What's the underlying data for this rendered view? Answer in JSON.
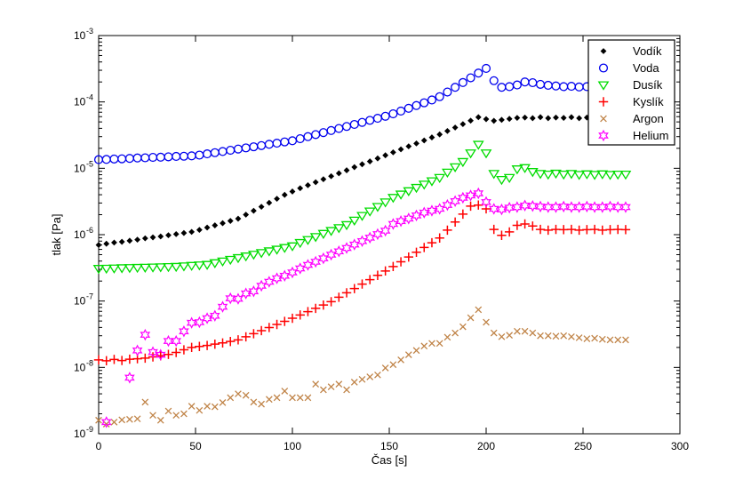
{
  "figure": {
    "background": "#ffffff",
    "axis_color": "#000000"
  },
  "chart_data": {
    "type": "scatter",
    "title": "",
    "xlabel": "Čas [s]",
    "ylabel": "tlak [Pa]",
    "xlim": [
      0,
      300
    ],
    "x_ticks": [
      0,
      50,
      100,
      150,
      200,
      250,
      300
    ],
    "y_scale": "log",
    "ylim_exp": [
      -9,
      -3
    ],
    "y_tick_exponents": [
      -9,
      -8,
      -7,
      -6,
      -5,
      -4,
      -3
    ],
    "grid": false,
    "legend": {
      "position": "northeast",
      "background": "#ffffff",
      "border_color": "#000000"
    },
    "x": [
      0,
      4,
      8,
      12,
      16,
      20,
      24,
      28,
      32,
      36,
      40,
      44,
      48,
      52,
      56,
      60,
      64,
      68,
      72,
      76,
      80,
      84,
      88,
      92,
      96,
      100,
      104,
      108,
      112,
      116,
      120,
      124,
      128,
      132,
      136,
      140,
      144,
      148,
      152,
      156,
      160,
      164,
      168,
      172,
      176,
      180,
      184,
      188,
      192,
      196,
      200,
      204,
      208,
      212,
      216,
      220,
      224,
      228,
      232,
      236,
      240,
      244,
      248,
      252,
      256,
      260,
      264,
      268,
      272
    ],
    "series": [
      {
        "id": "vodik",
        "name": "Vodík",
        "marker": "diamond",
        "filled": true,
        "color": "#000000",
        "values": [
          7e-07,
          7.3e-07,
          7.6e-07,
          7.8e-07,
          8.1e-07,
          8.4e-07,
          8.8e-07,
          9.1e-07,
          9.4e-07,
          9.8e-07,
          1.02e-06,
          1.06e-06,
          1.1e-06,
          1.18e-06,
          1.28e-06,
          1.38e-06,
          1.49e-06,
          1.61e-06,
          1.74e-06,
          2e-06,
          2.29e-06,
          2.63e-06,
          3.02e-06,
          3.47e-06,
          3.98e-06,
          4.47e-06,
          5.01e-06,
          5.56e-06,
          6.17e-06,
          6.84e-06,
          7.59e-06,
          8.41e-06,
          9.33e-06,
          1.04e-05,
          1.15e-05,
          1.27e-05,
          1.41e-05,
          1.57e-05,
          1.74e-05,
          1.93e-05,
          2.14e-05,
          2.37e-05,
          2.63e-05,
          2.92e-05,
          3.24e-05,
          3.65e-05,
          4.11e-05,
          4.63e-05,
          5.22e-05,
          5.89e-05,
          5.5e-05,
          5.19e-05,
          5.37e-05,
          5.56e-05,
          5.75e-05,
          5.82e-05,
          5.69e-05,
          5.89e-05,
          5.69e-05,
          5.82e-05,
          5.75e-05,
          5.89e-05,
          5.69e-05,
          5.82e-05,
          5.75e-05,
          5.89e-05,
          5.75e-05,
          5.82e-05,
          5.75e-05
        ]
      },
      {
        "id": "voda",
        "name": "Voda",
        "marker": "circle",
        "filled": false,
        "color": "#0000EE",
        "values": [
          1.35e-05,
          1.36e-05,
          1.38e-05,
          1.39e-05,
          1.41e-05,
          1.43e-05,
          1.44e-05,
          1.46e-05,
          1.47e-05,
          1.49e-05,
          1.51e-05,
          1.52e-05,
          1.54e-05,
          1.58e-05,
          1.65e-05,
          1.72e-05,
          1.79e-05,
          1.87e-05,
          1.95e-05,
          2.03e-05,
          2.11e-05,
          2.2e-05,
          2.3e-05,
          2.39e-05,
          2.5e-05,
          2.6e-05,
          2.79e-05,
          3e-05,
          3.22e-05,
          3.45e-05,
          3.71e-05,
          3.98e-05,
          4.27e-05,
          4.58e-05,
          4.92e-05,
          5.28e-05,
          5.67e-05,
          6.08e-05,
          6.62e-05,
          7.28e-05,
          8.02e-05,
          8.83e-05,
          9.71e-05,
          0.000107,
          0.00012,
          0.000141,
          0.000166,
          0.000196,
          0.000231,
          0.000272,
          0.00032,
          0.000209,
          0.000166,
          0.00017,
          0.00018,
          0.0002,
          0.000195,
          0.000184,
          0.000178,
          0.000174,
          0.00017,
          0.000172,
          0.000168,
          0.00017,
          0.000168,
          0.00017,
          0.000168,
          0.00017,
          0.000169
        ]
      },
      {
        "id": "dusik",
        "name": "Dusík",
        "marker": "triangle-down",
        "filled": false,
        "color": "#00DC00",
        "values": [
          3.09e-07,
          3.11e-07,
          3.13e-07,
          3.16e-07,
          3.18e-07,
          3.2e-07,
          3.22e-07,
          3.24e-07,
          3.27e-07,
          3.29e-07,
          3.31e-07,
          3.37e-07,
          3.43e-07,
          3.49e-07,
          3.55e-07,
          3.76e-07,
          3.99e-07,
          4.23e-07,
          4.49e-07,
          4.76e-07,
          5.05e-07,
          5.35e-07,
          5.68e-07,
          6.02e-07,
          6.38e-07,
          6.76e-07,
          7.59e-07,
          8.41e-07,
          9.33e-07,
          1.04e-06,
          1.15e-06,
          1.27e-06,
          1.41e-06,
          1.65e-06,
          1.94e-06,
          2.26e-06,
          2.65e-06,
          3.1e-06,
          3.63e-06,
          4.07e-06,
          4.57e-06,
          5.13e-06,
          5.75e-06,
          6.46e-06,
          7.24e-06,
          8.71e-06,
          1.05e-05,
          1.26e-05,
          1.7e-05,
          2.29e-05,
          1.7e-05,
          8.32e-06,
          6.76e-06,
          7.24e-06,
          9.77e-06,
          1.02e-05,
          8.91e-06,
          8.32e-06,
          8.13e-06,
          8.41e-06,
          8.13e-06,
          8.32e-06,
          8.04e-06,
          8.22e-06,
          8.04e-06,
          8.22e-06,
          8.04e-06,
          8.13e-06,
          8.13e-06
        ]
      },
      {
        "id": "kyslik",
        "name": "Kyslík",
        "marker": "plus",
        "filled": false,
        "color": "#FF0000",
        "values": [
          1.3e-08,
          1.26e-08,
          1.32e-08,
          1.27e-08,
          1.33e-08,
          1.35e-08,
          1.38e-08,
          1.44e-08,
          1.5e-08,
          1.57e-08,
          1.68e-08,
          1.84e-08,
          2e-08,
          2.07e-08,
          2.14e-08,
          2.24e-08,
          2.34e-08,
          2.46e-08,
          2.6e-08,
          2.89e-08,
          3.22e-08,
          3.58e-08,
          3.99e-08,
          4.44e-08,
          4.94e-08,
          5.5e-08,
          6.17e-08,
          6.92e-08,
          7.76e-08,
          8.71e-08,
          9.77e-08,
          1.14e-07,
          1.33e-07,
          1.54e-07,
          1.8e-07,
          2.1e-07,
          2.44e-07,
          2.84e-07,
          3.31e-07,
          3.9e-07,
          4.6e-07,
          5.43e-07,
          6.41e-07,
          7.56e-07,
          8.91e-07,
          1.17e-06,
          1.55e-06,
          2.04e-06,
          2.69e-06,
          2.79e-06,
          2.45e-06,
          1.2e-06,
          9.77e-07,
          1.1e-06,
          1.38e-06,
          1.45e-06,
          1.35e-06,
          1.2e-06,
          1.17e-06,
          1.2e-06,
          1.19e-06,
          1.2e-06,
          1.17e-06,
          1.19e-06,
          1.2e-06,
          1.17e-06,
          1.19e-06,
          1.2e-06,
          1.19e-06
        ]
      },
      {
        "id": "argon",
        "name": "Argon",
        "marker": "x",
        "filled": false,
        "color": "#C08448",
        "values": [
          1.6e-09,
          1.4e-09,
          1.5e-09,
          1.62e-09,
          1.65e-09,
          1.68e-09,
          3e-09,
          1.9e-09,
          1.6e-09,
          2.2e-09,
          1.9e-09,
          2e-09,
          2.6e-09,
          2.25e-09,
          2.6e-09,
          2.55e-09,
          2.95e-09,
          3.5e-09,
          4e-09,
          3.8e-09,
          3e-09,
          2.8e-09,
          3.3e-09,
          3.5e-09,
          4.4e-09,
          3.5e-09,
          3.5e-09,
          3.5e-09,
          5.6e-09,
          4.6e-09,
          5.1e-09,
          5.6e-09,
          4.6e-09,
          6e-09,
          6.6e-09,
          7.2e-09,
          7.7e-09,
          9.8e-09,
          1.1e-08,
          1.3e-08,
          1.55e-08,
          1.8e-08,
          2.1e-08,
          2.3e-08,
          2.3e-08,
          2.85e-08,
          3.3e-08,
          4.1e-08,
          5.6e-08,
          7.4e-08,
          4.8e-08,
          3.3e-08,
          2.9e-08,
          3.05e-08,
          3.5e-08,
          3.5e-08,
          3.3e-08,
          3e-08,
          3e-08,
          2.95e-08,
          3e-08,
          2.9e-08,
          2.8e-08,
          2.7e-08,
          2.75e-08,
          2.65e-08,
          2.6e-08,
          2.6e-08,
          2.6e-08
        ]
      },
      {
        "id": "helium",
        "name": "Helium",
        "marker": "hexagram",
        "filled": false,
        "color": "#FF00FF",
        "values": [
          null,
          1.5e-09,
          null,
          null,
          7e-09,
          1.8e-08,
          3.1e-08,
          1.7e-08,
          1.55e-08,
          2.5e-08,
          2.5e-08,
          3.5e-08,
          4.7e-08,
          4.8e-08,
          5.5e-08,
          6e-08,
          8.2e-08,
          1.1e-07,
          1.08e-07,
          1.3e-07,
          1.4e-07,
          1.7e-07,
          1.95e-07,
          2.2e-07,
          2.4e-07,
          2.7e-07,
          3.1e-07,
          3.5e-07,
          3.9e-07,
          4.4e-07,
          5e-07,
          5.6e-07,
          6.3e-07,
          7.1e-07,
          8e-07,
          9e-07,
          1.02e-06,
          1.15e-06,
          1.45e-06,
          1.6e-06,
          1.75e-06,
          1.95e-06,
          2.15e-06,
          2.3e-06,
          2.45e-06,
          2.8e-06,
          3.2e-06,
          3.6e-06,
          3.9e-06,
          4.2e-06,
          3.1e-06,
          2.45e-06,
          2.4e-06,
          2.55e-06,
          2.6e-06,
          2.75e-06,
          2.7e-06,
          2.65e-06,
          2.6e-06,
          2.6e-06,
          2.65e-06,
          2.6e-06,
          2.6e-06,
          2.65e-06,
          2.6e-06,
          2.6e-06,
          2.65e-06,
          2.6e-06,
          2.6e-06
        ]
      }
    ]
  }
}
